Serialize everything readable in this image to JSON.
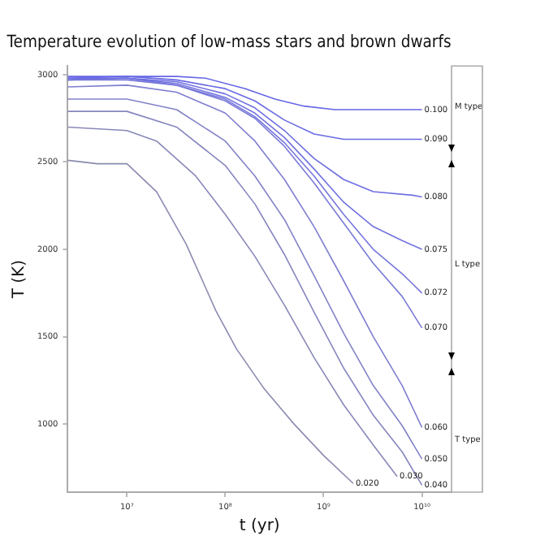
{
  "chart_data": {
    "type": "line",
    "title": "Temperature evolution of low-mass stars and brown dwarfs",
    "xlabel": "t (yr)",
    "ylabel": "T (K)",
    "log": "x",
    "grid": false,
    "legend": false,
    "marker": "none",
    "line_style": "solid",
    "xlim": [
      2500000,
      20000000000
    ],
    "xticks": [
      {
        "value": 10000000,
        "label": "10⁷"
      },
      {
        "value": 100000000,
        "label": "10⁸"
      },
      {
        "value": 1000000000,
        "label": "10⁹"
      },
      {
        "value": 10000000000,
        "label": "10¹⁰"
      }
    ],
    "ylim": [
      610,
      3050
    ],
    "yticks": [
      1000,
      1500,
      2000,
      2500,
      3000
    ],
    "annotations": [
      "M type",
      "L type",
      "T type"
    ],
    "series": [
      {
        "name": "0.100",
        "color": "#6666e6",
        "x": [
          2500000,
          10000000,
          32000000,
          63000000,
          160000000,
          320000000,
          630000000,
          1300000000,
          3200000000,
          10000000000
        ],
        "values": [
          2990,
          2990,
          2990,
          2980,
          2920,
          2860,
          2820,
          2800,
          2800,
          2800
        ]
      },
      {
        "name": "0.090",
        "color": "#6a6ae4",
        "x": [
          2500000,
          10000000,
          32000000,
          100000000,
          200000000,
          400000000,
          800000000,
          1600000000,
          4000000000,
          10000000000
        ],
        "values": [
          2980,
          2990,
          2970,
          2920,
          2850,
          2740,
          2660,
          2630,
          2630,
          2630
        ]
      },
      {
        "name": "0.080",
        "color": "#6e6ee2",
        "x": [
          2500000,
          10000000,
          32000000,
          100000000,
          200000000,
          400000000,
          800000000,
          1600000000,
          3200000000,
          8000000000,
          10000000000
        ],
        "values": [
          2980,
          2980,
          2960,
          2890,
          2810,
          2680,
          2520,
          2400,
          2330,
          2310,
          2300
        ]
      },
      {
        "name": "0.075",
        "color": "#7272df",
        "x": [
          2500000,
          10000000,
          32000000,
          100000000,
          200000000,
          400000000,
          800000000,
          1600000000,
          3200000000,
          6300000000,
          10000000000
        ],
        "values": [
          2970,
          2980,
          2950,
          2870,
          2780,
          2640,
          2460,
          2270,
          2130,
          2050,
          2000
        ]
      },
      {
        "name": "0.072",
        "color": "#7676dc",
        "x": [
          2500000,
          10000000,
          32000000,
          100000000,
          200000000,
          400000000,
          800000000,
          1600000000,
          3200000000,
          6300000000,
          10000000000
        ],
        "values": [
          2970,
          2980,
          2940,
          2860,
          2760,
          2610,
          2420,
          2200,
          2000,
          1860,
          1750
        ]
      },
      {
        "name": "0.070",
        "color": "#7a7ad8",
        "x": [
          2500000,
          10000000,
          32000000,
          100000000,
          200000000,
          400000000,
          800000000,
          1600000000,
          3200000000,
          6300000000,
          10000000000
        ],
        "values": [
          2970,
          2970,
          2940,
          2850,
          2750,
          2590,
          2380,
          2150,
          1920,
          1730,
          1550
        ]
      },
      {
        "name": "0.060",
        "color": "#7e7ed0",
        "x": [
          2500000,
          10000000,
          32000000,
          100000000,
          200000000,
          400000000,
          800000000,
          1600000000,
          3200000000,
          6300000000,
          10000000000
        ],
        "values": [
          2930,
          2940,
          2900,
          2780,
          2620,
          2400,
          2130,
          1820,
          1500,
          1220,
          980
        ]
      },
      {
        "name": "0.050",
        "color": "#8282c8",
        "x": [
          2500000,
          10000000,
          32000000,
          100000000,
          200000000,
          400000000,
          800000000,
          1600000000,
          3200000000,
          6300000000,
          10000000000
        ],
        "values": [
          2860,
          2860,
          2800,
          2620,
          2420,
          2170,
          1850,
          1520,
          1220,
          990,
          800
        ]
      },
      {
        "name": "0.040",
        "color": "#8686c0",
        "x": [
          2500000,
          10000000,
          32000000,
          100000000,
          200000000,
          400000000,
          800000000,
          1600000000,
          3200000000,
          6300000000,
          10000000000
        ],
        "values": [
          2790,
          2790,
          2700,
          2480,
          2260,
          1970,
          1640,
          1320,
          1050,
          840,
          650
        ]
      },
      {
        "name": "0.030",
        "color": "#8888b8",
        "x": [
          2500000,
          10000000,
          20000000,
          50000000,
          100000000,
          200000000,
          400000000,
          800000000,
          1600000000,
          3200000000,
          5600000000
        ],
        "values": [
          2700,
          2680,
          2620,
          2420,
          2200,
          1960,
          1680,
          1380,
          1110,
          880,
          700
        ]
      },
      {
        "name": "0.020",
        "color": "#8a8ab0",
        "x": [
          2500000,
          5000000,
          10000000,
          20000000,
          40000000,
          80000000,
          130000000,
          250000000,
          500000000,
          1000000000,
          2000000000
        ],
        "values": [
          2510,
          2490,
          2490,
          2330,
          2030,
          1650,
          1430,
          1200,
          1000,
          820,
          660
        ]
      }
    ]
  }
}
